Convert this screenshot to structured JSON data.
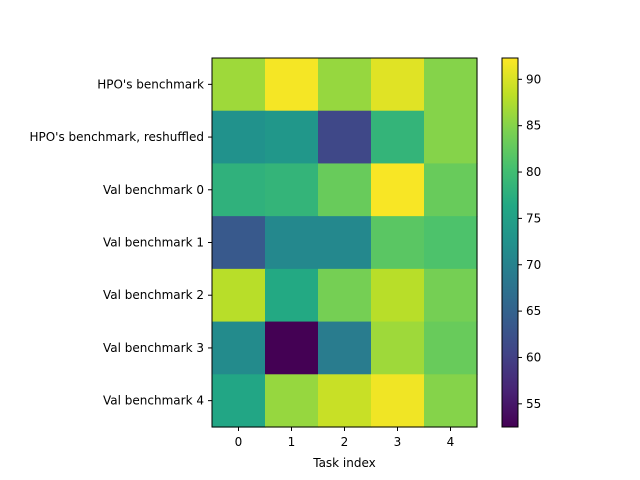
{
  "chart_data": {
    "type": "heatmap",
    "title": "",
    "xlabel": "Task index",
    "ylabel": "",
    "x_categories": [
      "0",
      "1",
      "2",
      "3",
      "4"
    ],
    "y_categories": [
      "HPO's benchmark",
      "HPO's benchmark, reshuffled",
      "Val benchmark 0",
      "Val benchmark 1",
      "Val benchmark 2",
      "Val benchmark 3",
      "Val benchmark 4"
    ],
    "values": [
      [
        86.5,
        91.8,
        86.0,
        90.5,
        85.0
      ],
      [
        72.5,
        73.5,
        61.0,
        78.5,
        85.0
      ],
      [
        78.0,
        78.5,
        83.0,
        92.0,
        83.0
      ],
      [
        63.5,
        71.0,
        71.0,
        82.0,
        81.0
      ],
      [
        88.0,
        76.5,
        84.0,
        88.0,
        84.0
      ],
      [
        71.5,
        52.5,
        69.0,
        86.5,
        83.0
      ],
      [
        76.0,
        86.0,
        89.0,
        91.5,
        85.0
      ]
    ],
    "colormap": "viridis",
    "vmin": 52.5,
    "vmax": 92.3,
    "colorbar_ticks": [
      55,
      60,
      65,
      70,
      75,
      80,
      85,
      90
    ]
  }
}
